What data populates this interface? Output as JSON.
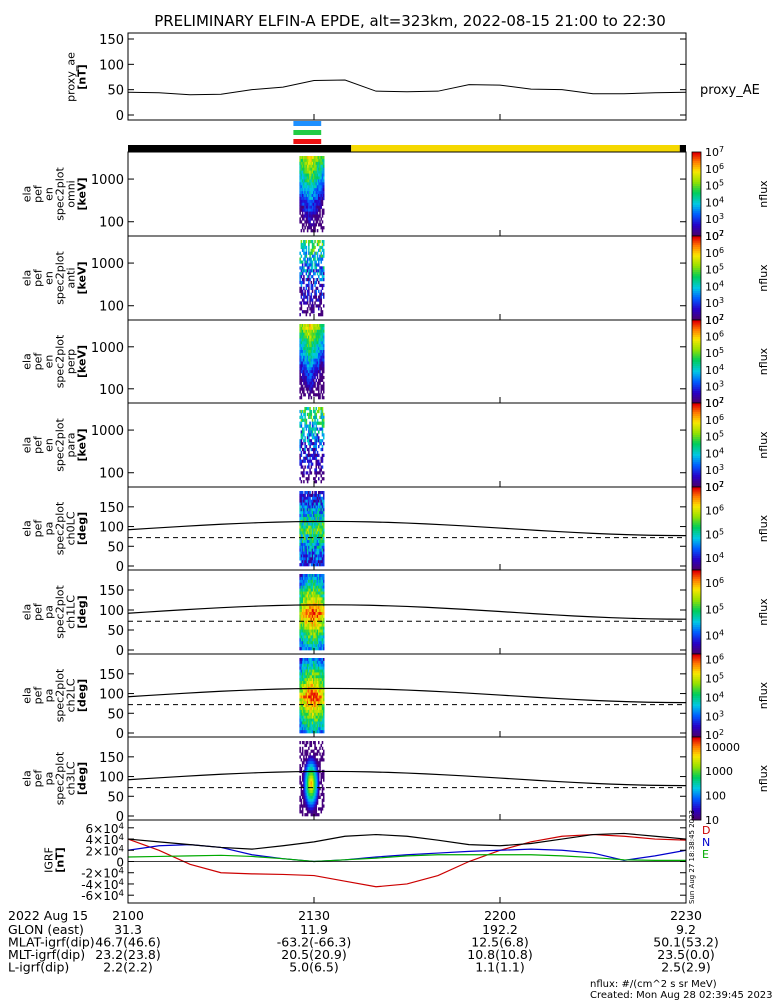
{
  "title": "PRELIMINARY ELFIN-A EPDE, alt=323km, 2022-08-15 21:00 to 22:30",
  "footer": {
    "date_label": "2022 Aug 15",
    "row_labels": [
      "GLON (east)",
      "MLAT-igrf(dip)",
      "MLT-igrf(dip)",
      "L-igrf(dip)"
    ],
    "time_labels": [
      "2100",
      "2130",
      "2200",
      "2230"
    ],
    "rows": [
      [
        "31.3",
        "11.9",
        "192.2",
        "9.2"
      ],
      [
        "46.7(46.6)",
        "-63.2(-66.3)",
        "12.5(6.8)",
        "50.1(53.2)"
      ],
      [
        "23.2(23.8)",
        "20.5(20.9)",
        "10.8(10.8)",
        "23.5(0.0)"
      ],
      [
        "2.2(2.2)",
        "5.0(6.5)",
        "1.1(1.1)",
        "2.5(2.9)"
      ]
    ],
    "nflux_units": "nflux: #/(cm^2 s sr MeV)",
    "created": "Created: Mon Aug 28 02:39:45 2023",
    "side_stamp": "Sun Aug 27 18:38:45 2023"
  },
  "status_bars": {
    "colors": [
      "#1e90ff",
      "#22cc44",
      "#ee1111"
    ],
    "orbit_segments": [
      {
        "from": "21:00",
        "to": "21:36",
        "color": "#000000"
      },
      {
        "from": "21:36",
        "to": "22:29",
        "color": "#f5d800"
      },
      {
        "from": "22:29",
        "to": "22:30",
        "color": "#000000"
      }
    ]
  },
  "chart_data": [
    {
      "type": "line",
      "panel": "proxy_ae",
      "ylabel_lines": [
        "proxy_ae",
        "[nT]"
      ],
      "legend": "proxy_AE",
      "ylim": [
        0,
        150
      ],
      "yticks": [
        "0",
        "50",
        "100",
        "150"
      ],
      "x": [
        "21:00",
        "21:05",
        "21:10",
        "21:15",
        "21:20",
        "21:25",
        "21:30",
        "21:35",
        "21:40",
        "21:45",
        "21:50",
        "21:55",
        "22:00",
        "22:05",
        "22:10",
        "22:15",
        "22:20",
        "22:25",
        "22:30"
      ],
      "values": [
        45,
        44,
        40,
        41,
        50,
        55,
        68,
        69,
        47,
        46,
        47,
        60,
        59,
        51,
        50,
        42,
        42,
        44,
        45
      ]
    },
    {
      "type": "heatmap",
      "panel": "omni",
      "ylabel_lines": [
        "ela",
        "pef",
        "en",
        "spec2plot",
        "omni",
        "[keV]"
      ],
      "y_scale": "log",
      "yticks": [
        "100",
        "1000"
      ],
      "colorbar": {
        "label": "nflux",
        "ticks": [
          "10^2",
          "10^3",
          "10^4",
          "10^5",
          "10^6",
          "10^7"
        ],
        "log_range": [
          2,
          7
        ]
      },
      "time_window": [
        "21:27",
        "21:31"
      ]
    },
    {
      "type": "heatmap",
      "panel": "anti",
      "ylabel_lines": [
        "ela",
        "pef",
        "en",
        "spec2plot",
        "anti",
        "[keV]"
      ],
      "y_scale": "log",
      "yticks": [
        "100",
        "1000"
      ],
      "colorbar": {
        "label": "nflux",
        "ticks": [
          "10^2",
          "10^3",
          "10^4",
          "10^5",
          "10^6",
          "10^7"
        ],
        "log_range": [
          2,
          7
        ]
      },
      "time_window": [
        "21:27",
        "21:31"
      ]
    },
    {
      "type": "heatmap",
      "panel": "perp",
      "ylabel_lines": [
        "ela",
        "pef",
        "en",
        "spec2plot",
        "perp",
        "[keV]"
      ],
      "y_scale": "log",
      "yticks": [
        "100",
        "1000"
      ],
      "colorbar": {
        "label": "nflux",
        "ticks": [
          "10^2",
          "10^3",
          "10^4",
          "10^5",
          "10^6",
          "10^7"
        ],
        "log_range": [
          2,
          7
        ]
      },
      "time_window": [
        "21:27",
        "21:31"
      ]
    },
    {
      "type": "heatmap",
      "panel": "para",
      "ylabel_lines": [
        "ela",
        "pef",
        "en",
        "spec2plot",
        "para",
        "[keV]"
      ],
      "y_scale": "log",
      "yticks": [
        "100",
        "1000"
      ],
      "colorbar": {
        "label": "nflux",
        "ticks": [
          "10^2",
          "10^3",
          "10^4",
          "10^5",
          "10^6",
          "10^7"
        ],
        "log_range": [
          2,
          7
        ]
      },
      "time_window": [
        "21:27",
        "21:31"
      ]
    },
    {
      "type": "heatmap",
      "panel": "ch0LC",
      "ylabel_lines": [
        "ela",
        "pef",
        "pa",
        "spec2plot",
        "ch0LC",
        "[deg]"
      ],
      "ylim": [
        0,
        180
      ],
      "yticks": [
        "0",
        "50",
        "100",
        "150"
      ],
      "colorbar": {
        "label": "nflux",
        "ticks": [
          "10^4",
          "10^5",
          "10^6",
          "10^7"
        ],
        "log_range": [
          3.5,
          7
        ]
      },
      "time_window": [
        "21:27",
        "21:31"
      ]
    },
    {
      "type": "heatmap",
      "panel": "ch1LC",
      "ylabel_lines": [
        "ela",
        "pef",
        "pa",
        "spec2plot",
        "ch1LC",
        "[deg]"
      ],
      "ylim": [
        0,
        180
      ],
      "yticks": [
        "0",
        "50",
        "100",
        "150"
      ],
      "colorbar": {
        "label": "nflux",
        "ticks": [
          "10^4",
          "10^5",
          "10^6"
        ],
        "log_range": [
          3.3,
          6.5
        ]
      },
      "time_window": [
        "21:27",
        "21:31"
      ]
    },
    {
      "type": "heatmap",
      "panel": "ch2LC",
      "ylabel_lines": [
        "ela",
        "pef",
        "pa",
        "spec2plot",
        "ch2LC",
        "[deg]"
      ],
      "ylim": [
        0,
        180
      ],
      "yticks": [
        "0",
        "50",
        "100",
        "150"
      ],
      "colorbar": {
        "label": "nflux",
        "ticks": [
          "10^2",
          "10^3",
          "10^4",
          "10^5",
          "10^6"
        ],
        "log_range": [
          1.9,
          6.3
        ]
      },
      "time_window": [
        "21:27",
        "21:31"
      ]
    },
    {
      "type": "heatmap",
      "panel": "ch3LC",
      "ylabel_lines": [
        "ela",
        "pef",
        "pa",
        "spec2plot",
        "ch3LC",
        "[deg]"
      ],
      "ylim": [
        0,
        180
      ],
      "yticks": [
        "0",
        "50",
        "100",
        "150"
      ],
      "colorbar": {
        "label": "nflux",
        "ticks": [
          "10",
          "100",
          "1000",
          "10000"
        ],
        "log_range": [
          1,
          4.4
        ]
      },
      "time_window": [
        "21:27",
        "21:31"
      ]
    },
    {
      "type": "line",
      "panel": "mag",
      "ylabel_lines": [
        "IGRF",
        "[nT]"
      ],
      "ylim": [
        -65000,
        65000
      ],
      "yticks": [
        "-6×10^4",
        "-4×10^4",
        "-2×10^4",
        "0",
        "2×10^4",
        "4×10^4",
        "6×10^4"
      ],
      "legend": [
        "D",
        "N",
        "E"
      ],
      "x": [
        "21:00",
        "21:05",
        "21:10",
        "21:15",
        "21:20",
        "21:25",
        "21:30",
        "21:35",
        "21:40",
        "21:45",
        "21:50",
        "21:55",
        "22:00",
        "22:05",
        "22:10",
        "22:15",
        "22:20",
        "22:25",
        "22:30"
      ],
      "series": [
        {
          "name": "D",
          "color": "#cc0000",
          "values": [
            40000,
            20000,
            -5000,
            -20000,
            -22000,
            -23000,
            -25000,
            -35000,
            -45000,
            -40000,
            -25000,
            0,
            20000,
            35000,
            45000,
            48000,
            45000,
            40000,
            38000
          ]
        },
        {
          "name": "N",
          "color": "#0000cc",
          "values": [
            20000,
            28000,
            30000,
            25000,
            12000,
            5000,
            0,
            3000,
            8000,
            12000,
            15000,
            18000,
            20000,
            22000,
            20000,
            15000,
            2000,
            10000,
            20000
          ]
        },
        {
          "name": "E",
          "color": "#00aa00",
          "values": [
            8000,
            9000,
            10000,
            11000,
            9000,
            5000,
            0,
            3000,
            6000,
            10000,
            12000,
            12000,
            12000,
            12000,
            10000,
            7000,
            3000,
            2000,
            2000
          ]
        },
        {
          "name": "",
          "color": "#000000",
          "values": [
            40000,
            35000,
            30000,
            25000,
            22000,
            28000,
            35000,
            45000,
            48000,
            45000,
            38000,
            30000,
            28000,
            32000,
            40000,
            48000,
            50000,
            45000,
            40000
          ]
        }
      ]
    }
  ]
}
